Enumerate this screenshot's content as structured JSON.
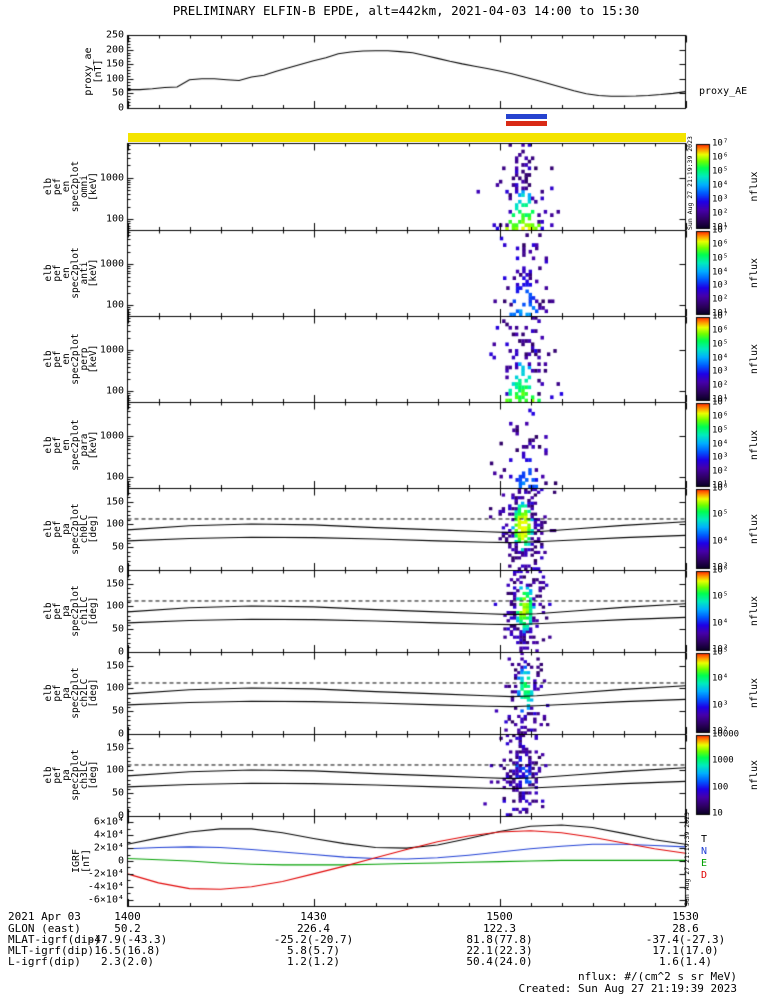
{
  "title": "PRELIMINARY ELFIN-B EPDE, alt=442km, 2021-04-03 14:00 to 15:30",
  "side_timestamp": "Sun Aug 27 21:19:39 2023",
  "footer": {
    "date_label": "2021 Apr 03",
    "rows": [
      {
        "label": "GLON (east)",
        "values": [
          "50.2",
          "226.4",
          "122.3",
          "28.6"
        ]
      },
      {
        "label": "MLAT-igrf(dip)",
        "values": [
          "-47.9(-43.3)",
          "-25.2(-20.7)",
          "81.8(77.8)",
          "-37.4(-27.3)"
        ]
      },
      {
        "label": "MLT-igrf(dip)",
        "values": [
          "16.5(16.8)",
          "5.8(5.7)",
          "22.1(22.3)",
          "17.1(17.0)"
        ]
      },
      {
        "label": "L-igrf(dip)",
        "values": [
          "2.3(2.0)",
          "1.2(1.2)",
          "50.4(24.0)",
          "1.6(1.4)"
        ]
      }
    ],
    "nflux_note": "nflux: #/(cm^2 s sr MeV)",
    "created": "Created: Sun Aug 27 21:19:39 2023"
  },
  "chart_data": {
    "type": "multi-panel: line series + energy/pitch-angle spectrograms",
    "time_range_min": [
      0,
      90
    ],
    "time_ticks": [
      {
        "t": 0,
        "label": "1400"
      },
      {
        "t": 30,
        "label": "1430"
      },
      {
        "t": 60,
        "label": "1500"
      },
      {
        "t": 90,
        "label": "1530"
      }
    ],
    "proxy_ae": {
      "type": "line",
      "color": "#000000",
      "ylabel_lines": [
        "proxy_ae",
        "[nT]"
      ],
      "right_label": "proxy_AE",
      "ylim": [
        0,
        250
      ],
      "yticks": [
        0,
        50,
        100,
        150,
        200,
        250
      ],
      "x_start_min": 0,
      "x_step_min": 2,
      "y": [
        63,
        63,
        66,
        70,
        72,
        97,
        100,
        100,
        97,
        94,
        106,
        112,
        126,
        138,
        150,
        162,
        172,
        186,
        192,
        195,
        196,
        196,
        193,
        189,
        180,
        170,
        160,
        151,
        143,
        135,
        127,
        117,
        106,
        95,
        83,
        71,
        59,
        49,
        43,
        40,
        40,
        41,
        43,
        46,
        50,
        56
      ]
    },
    "availability_bars": [
      {
        "name": "science-zone-bar-blue",
        "color": "#2643cf",
        "t0": 61.0,
        "t1": 67.6
      },
      {
        "name": "science-zone-bar-red",
        "color": "#d92a15",
        "t0": 61.0,
        "t1": 67.6
      },
      {
        "name": "coverage-bar-yellow",
        "color": "#f4e400",
        "t0": 0,
        "t1": 90
      }
    ],
    "energy_panels": [
      {
        "id": "en_omni",
        "ylabel_lines": [
          "elb",
          "pef",
          "en",
          "spec2plot",
          "omni",
          "[keV]"
        ],
        "yscale": "log",
        "ylim_kev": [
          55,
          6800
        ],
        "ytick_labels": [
          {
            "v": 1000,
            "label": "1000"
          },
          {
            "v": 100,
            "label": "100"
          }
        ],
        "colorbar_label": "nflux",
        "colorbar_ticks": [
          "10⁷",
          "10⁶",
          "10⁵",
          "10⁴",
          "10³",
          "10²",
          "10¹"
        ],
        "burst": {
          "t_center_min": 63.6,
          "t_half_width_min": 3.4,
          "density": 0.62,
          "core_strength": 1.0,
          "seed": 101
        }
      },
      {
        "id": "en_anti",
        "ylabel_lines": [
          "elb",
          "pef",
          "en",
          "spec2plot",
          "anti",
          "[keV]"
        ],
        "yscale": "log",
        "ylim_kev": [
          55,
          6800
        ],
        "ytick_labels": [
          {
            "v": 1000,
            "label": "1000"
          },
          {
            "v": 100,
            "label": "100"
          }
        ],
        "colorbar_label": "nflux",
        "colorbar_ticks": [
          "10⁷",
          "10⁶",
          "10⁵",
          "10⁴",
          "10³",
          "10²",
          "10¹"
        ],
        "burst": {
          "t_center_min": 63.8,
          "t_half_width_min": 3.2,
          "density": 0.38,
          "core_strength": 0.55,
          "seed": 102
        }
      },
      {
        "id": "en_perp",
        "ylabel_lines": [
          "elb",
          "pef",
          "en",
          "spec2plot",
          "perp",
          "[keV]"
        ],
        "yscale": "log",
        "ylim_kev": [
          55,
          6800
        ],
        "ytick_labels": [
          {
            "v": 1000,
            "label": "1000"
          },
          {
            "v": 100,
            "label": "100"
          }
        ],
        "colorbar_label": "nflux",
        "colorbar_ticks": [
          "10⁷",
          "10⁶",
          "10⁵",
          "10⁴",
          "10³",
          "10²",
          "10¹"
        ],
        "burst": {
          "t_center_min": 63.6,
          "t_half_width_min": 3.4,
          "density": 0.58,
          "core_strength": 0.92,
          "seed": 103
        }
      },
      {
        "id": "en_para",
        "ylabel_lines": [
          "elb",
          "pef",
          "en",
          "spec2plot",
          "para",
          "[keV]"
        ],
        "yscale": "log",
        "ylim_kev": [
          55,
          6800
        ],
        "ytick_labels": [
          {
            "v": 1000,
            "label": "1000"
          },
          {
            "v": 100,
            "label": "100"
          }
        ],
        "colorbar_label": "nflux",
        "colorbar_ticks": [
          "10⁷",
          "10⁶",
          "10⁵",
          "10⁴",
          "10³",
          "10²",
          "10¹"
        ],
        "burst": {
          "t_center_min": 63.8,
          "t_half_width_min": 3.0,
          "density": 0.34,
          "core_strength": 0.5,
          "seed": 104
        }
      }
    ],
    "pitch_panels": [
      {
        "id": "ch0lc",
        "ylabel_lines": [
          "elb",
          "pef",
          "pa",
          "spec2plot",
          "ch0LC",
          "[deg]"
        ],
        "ylim_deg": [
          0,
          180
        ],
        "yticks": [
          0,
          50,
          100,
          150
        ],
        "colorbar_label": "nflux",
        "colorbar_ticks": [
          "10⁶",
          "10⁵",
          "10⁴",
          "10³"
        ],
        "burst": {
          "t_center_min": 63.5,
          "t_half_width_min": 2.6,
          "density": 0.8,
          "core_strength": 1.0,
          "seed": 105
        }
      },
      {
        "id": "ch1lc",
        "ylabel_lines": [
          "elb",
          "pef",
          "pa",
          "spec2plot",
          "ch1LC",
          "[deg]"
        ],
        "ylim_deg": [
          0,
          180
        ],
        "yticks": [
          0,
          50,
          100,
          150
        ],
        "colorbar_label": "nflux",
        "colorbar_ticks": [
          "10⁶",
          "10⁵",
          "10⁴",
          "10³"
        ],
        "burst": {
          "t_center_min": 63.8,
          "t_half_width_min": 2.4,
          "density": 0.7,
          "core_strength": 0.9,
          "seed": 106
        }
      },
      {
        "id": "ch2lc",
        "ylabel_lines": [
          "elb",
          "pef",
          "pa",
          "spec2plot",
          "ch2LC",
          "[deg]"
        ],
        "ylim_deg": [
          0,
          180
        ],
        "yticks": [
          0,
          50,
          100,
          150
        ],
        "colorbar_label": "nflux",
        "colorbar_ticks": [
          "10⁵",
          "10⁴",
          "10³",
          "10²"
        ],
        "burst": {
          "t_center_min": 64.0,
          "t_half_width_min": 2.2,
          "density": 0.6,
          "core_strength": 0.75,
          "seed": 107
        }
      },
      {
        "id": "ch3lc",
        "ylabel_lines": [
          "elb",
          "pef",
          "pa",
          "spec2plot",
          "ch3LC",
          "[deg]"
        ],
        "ylim_deg": [
          0,
          180
        ],
        "yticks": [
          0,
          50,
          100,
          150
        ],
        "colorbar_label": "nflux",
        "colorbar_ticks": [
          "10000",
          "1000",
          "100",
          "10"
        ],
        "burst": {
          "t_center_min": 63.6,
          "t_half_width_min": 2.8,
          "density": 0.55,
          "core_strength": 0.3,
          "seed": 108
        }
      }
    ],
    "pitch_overlay": {
      "dashed_line_deg": 112,
      "solid_lines": [
        [
          [
            0,
            88
          ],
          [
            10,
            97
          ],
          [
            20,
            101
          ],
          [
            30,
            99
          ],
          [
            40,
            93
          ],
          [
            50,
            88
          ],
          [
            58,
            84
          ],
          [
            62,
            82
          ],
          [
            66,
            84
          ],
          [
            72,
            90
          ],
          [
            80,
            98
          ],
          [
            90,
            106
          ]
        ],
        [
          [
            0,
            64
          ],
          [
            10,
            69
          ],
          [
            20,
            72
          ],
          [
            30,
            71
          ],
          [
            40,
            68
          ],
          [
            50,
            64
          ],
          [
            58,
            61
          ],
          [
            62,
            60
          ],
          [
            66,
            62
          ],
          [
            72,
            66
          ],
          [
            80,
            71
          ],
          [
            90,
            76
          ]
        ]
      ]
    },
    "igrf": {
      "ylabel_lines": [
        "IGRF",
        "[nT]"
      ],
      "ylim_nt": [
        -70000,
        70000
      ],
      "ytick_labels": [
        {
          "v": 60000,
          "label": "6×10⁴"
        },
        {
          "v": 40000,
          "label": "4×10⁴"
        },
        {
          "v": 20000,
          "label": "2×10⁴"
        },
        {
          "v": 0,
          "label": "0"
        },
        {
          "v": -20000,
          "label": "-2×10⁴"
        },
        {
          "v": -40000,
          "label": "-4×10⁴"
        },
        {
          "v": -60000,
          "label": "-6×10⁴"
        }
      ],
      "x_start_min": 0,
      "x_step_min": 5,
      "series": [
        {
          "name": "T",
          "color": "#000000",
          "y": [
            26000,
            36000,
            45000,
            50000,
            50000,
            44000,
            35000,
            27000,
            21000,
            20000,
            25000,
            35000,
            46000,
            54000,
            56000,
            52000,
            43000,
            33000,
            26000
          ]
        },
        {
          "name": "N",
          "color": "#1f3fd4",
          "y": [
            19000,
            21000,
            22000,
            21000,
            18000,
            14000,
            10000,
            6000,
            4000,
            3000,
            5000,
            9000,
            14000,
            19000,
            23000,
            26000,
            26000,
            24000,
            22000
          ]
        },
        {
          "name": "E",
          "color": "#00a000",
          "y": [
            4000,
            2000,
            0,
            -3000,
            -5000,
            -6000,
            -6000,
            -6000,
            -5000,
            -4000,
            -3000,
            -2000,
            -1000,
            0,
            1000,
            1000,
            1000,
            1000,
            1000
          ]
        },
        {
          "name": "D",
          "color": "#e00000",
          "y": [
            -20000,
            -34000,
            -43000,
            -44000,
            -40000,
            -32000,
            -20000,
            -8000,
            5000,
            18000,
            30000,
            39000,
            45000,
            47000,
            44000,
            37000,
            28000,
            19000,
            12000
          ]
        }
      ],
      "legend": [
        "T",
        "N",
        "E",
        "D"
      ]
    }
  }
}
